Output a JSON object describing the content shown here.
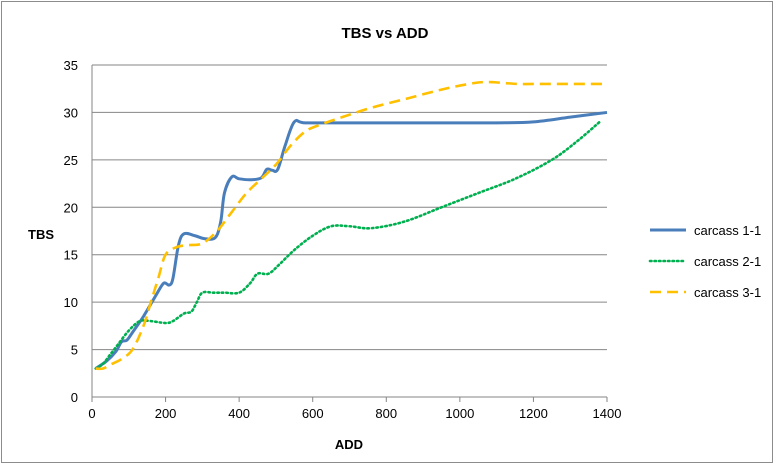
{
  "chart_data": {
    "type": "line",
    "title": "TBS vs ADD",
    "xlabel": "ADD",
    "ylabel": "TBS",
    "xlim": [
      0,
      1400
    ],
    "ylim": [
      0,
      35
    ],
    "x_ticks": [
      0,
      200,
      400,
      600,
      800,
      1000,
      1200,
      1400
    ],
    "y_ticks": [
      0,
      5,
      10,
      15,
      20,
      25,
      30,
      35
    ],
    "grid": "horizontal",
    "legend": "right",
    "series": [
      {
        "name": "carcass 1-1",
        "color": "#4a7ebb",
        "style": "solid",
        "points": [
          [
            10,
            3
          ],
          [
            40,
            3.8
          ],
          [
            65,
            4.8
          ],
          [
            80,
            5.8
          ],
          [
            95,
            6.0
          ],
          [
            110,
            6.8
          ],
          [
            140,
            8.5
          ],
          [
            175,
            10.8
          ],
          [
            195,
            12.0
          ],
          [
            210,
            11.8
          ],
          [
            220,
            12.5
          ],
          [
            235,
            16.0
          ],
          [
            250,
            17.2
          ],
          [
            280,
            17.0
          ],
          [
            305,
            16.7
          ],
          [
            335,
            16.8
          ],
          [
            350,
            18.5
          ],
          [
            360,
            21.5
          ],
          [
            380,
            23.2
          ],
          [
            400,
            23.0
          ],
          [
            430,
            22.9
          ],
          [
            460,
            23.1
          ],
          [
            475,
            24.0
          ],
          [
            490,
            23.9
          ],
          [
            505,
            24.0
          ],
          [
            525,
            26.5
          ],
          [
            550,
            29.0
          ],
          [
            580,
            28.9
          ],
          [
            700,
            28.9
          ],
          [
            900,
            28.9
          ],
          [
            1100,
            28.9
          ],
          [
            1200,
            29.0
          ],
          [
            1300,
            29.5
          ],
          [
            1400,
            30.0
          ]
        ]
      },
      {
        "name": "carcass 2-1",
        "color": "#00b050",
        "style": "dotted",
        "points": [
          [
            10,
            3
          ],
          [
            30,
            3.5
          ],
          [
            50,
            4.5
          ],
          [
            70,
            5.5
          ],
          [
            100,
            7.0
          ],
          [
            130,
            8.0
          ],
          [
            160,
            8.0
          ],
          [
            200,
            7.8
          ],
          [
            220,
            8.0
          ],
          [
            250,
            8.8
          ],
          [
            270,
            9.0
          ],
          [
            285,
            10.0
          ],
          [
            300,
            11.0
          ],
          [
            330,
            11.0
          ],
          [
            360,
            11.0
          ],
          [
            400,
            11.0
          ],
          [
            430,
            12.0
          ],
          [
            450,
            13.0
          ],
          [
            480,
            13.0
          ],
          [
            510,
            14.0
          ],
          [
            550,
            15.5
          ],
          [
            600,
            17.0
          ],
          [
            650,
            18.0
          ],
          [
            700,
            18.0
          ],
          [
            760,
            17.8
          ],
          [
            850,
            18.5
          ],
          [
            950,
            20.0
          ],
          [
            1050,
            21.5
          ],
          [
            1150,
            23.0
          ],
          [
            1250,
            25.0
          ],
          [
            1320,
            27.0
          ],
          [
            1380,
            29.0
          ]
        ]
      },
      {
        "name": "carcass 3-1",
        "color": "#ffc000",
        "style": "dashed",
        "points": [
          [
            10,
            3
          ],
          [
            30,
            3
          ],
          [
            55,
            3.5
          ],
          [
            80,
            4.0
          ],
          [
            110,
            5.0
          ],
          [
            140,
            7.5
          ],
          [
            160,
            10.0
          ],
          [
            180,
            12.5
          ],
          [
            200,
            15.0
          ],
          [
            230,
            15.8
          ],
          [
            260,
            16.0
          ],
          [
            300,
            16.2
          ],
          [
            340,
            17.5
          ],
          [
            380,
            19.5
          ],
          [
            420,
            21.5
          ],
          [
            460,
            23.0
          ],
          [
            500,
            24.5
          ],
          [
            540,
            26.5
          ],
          [
            580,
            28.0
          ],
          [
            620,
            28.7
          ],
          [
            680,
            29.5
          ],
          [
            760,
            30.5
          ],
          [
            860,
            31.5
          ],
          [
            960,
            32.5
          ],
          [
            1040,
            33.1
          ],
          [
            1080,
            33.2
          ],
          [
            1120,
            33.1
          ],
          [
            1160,
            33.0
          ],
          [
            1200,
            33.0
          ],
          [
            1300,
            33.0
          ],
          [
            1400,
            33.0
          ]
        ]
      }
    ]
  }
}
